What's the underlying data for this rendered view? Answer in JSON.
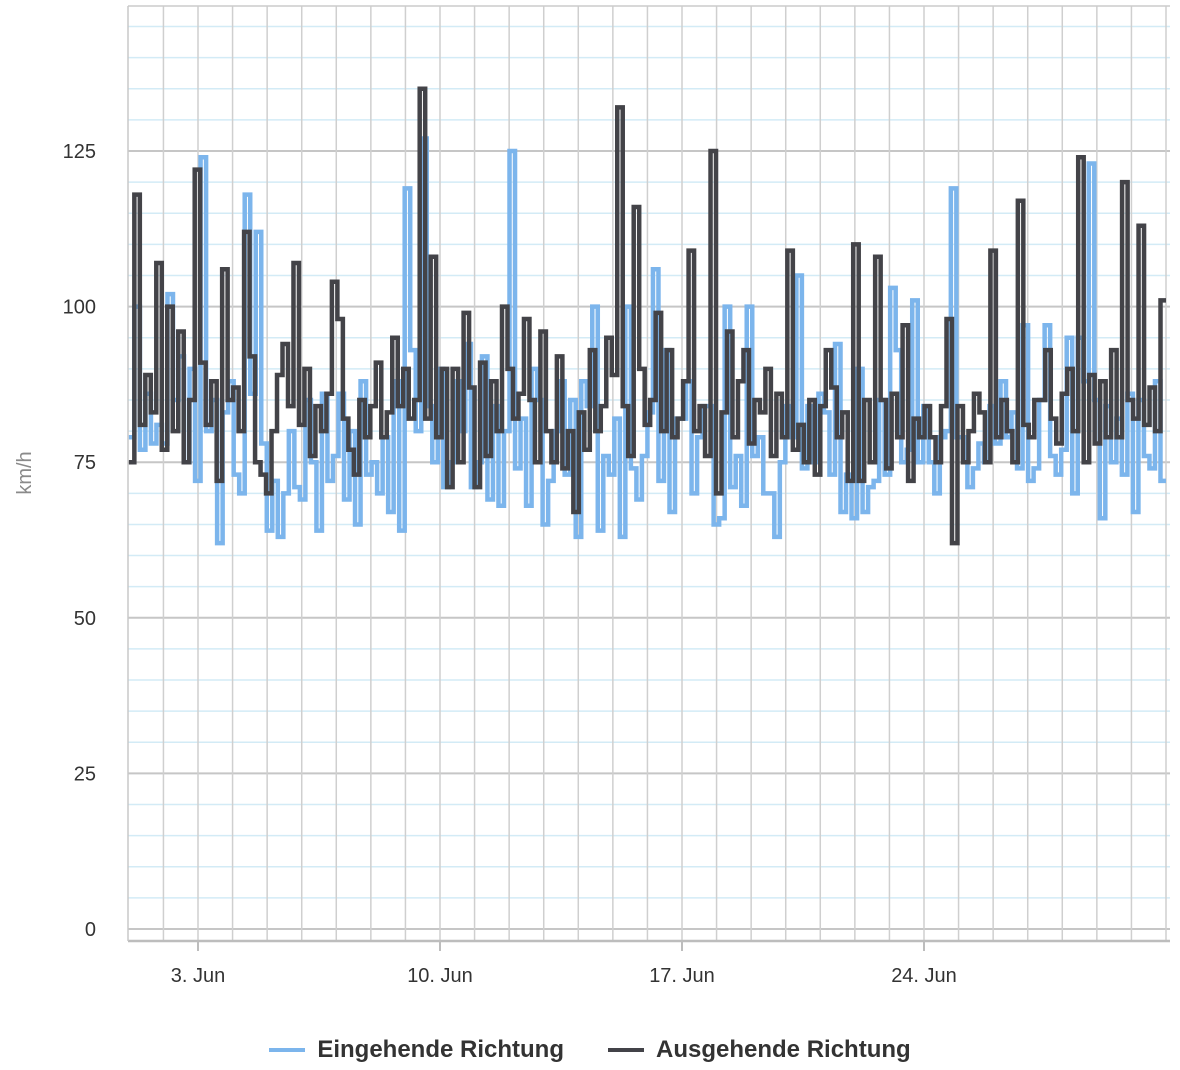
{
  "chart_data": {
    "type": "line",
    "ylabel": "km/h",
    "xlabel": "",
    "ylim": [
      0,
      150
    ],
    "y_ticks": [
      "0",
      "25",
      "50",
      "75",
      "100",
      "125"
    ],
    "x_range": [
      "2024-06-01",
      "2024-06-30"
    ],
    "x_ticks": [
      "3. Jun",
      "10. Jun",
      "17. Jun",
      "24. Jun"
    ],
    "x_tick_dates": [
      "2024-06-03",
      "2024-06-10",
      "2024-06-17",
      "2024-06-24"
    ],
    "grid": true,
    "legend_position": "bottom",
    "series": [
      {
        "name": "Eingehende Richtung",
        "color": "#7cb5ec",
        "values": [
          [
            79,
            100,
            77,
            86,
            78,
            81,
            78,
            102,
            85,
            92,
            75,
            90,
            72,
            124,
            80,
            85,
            62,
            83,
            88,
            73,
            70,
            118,
            86,
            112,
            78,
            64,
            72,
            63,
            70,
            80,
            71,
            69,
            85,
            75,
            64,
            86,
            72,
            76,
            86,
            69
          ],
          [
            80,
            65,
            88,
            73,
            75,
            70,
            79,
            67,
            88,
            64,
            119,
            93,
            80,
            127,
            84,
            75,
            90,
            71,
            75,
            88,
            80,
            94,
            71,
            75,
            92,
            69,
            84,
            68,
            80,
            125,
            74,
            82,
            68,
            90,
            85,
            65,
            72,
            80,
            88,
            73
          ],
          [
            85,
            63,
            88,
            84,
            100,
            64,
            76,
            73,
            82,
            63,
            100,
            74,
            69,
            76,
            83,
            106,
            72,
            93,
            67,
            82,
            82,
            88,
            70,
            79,
            84,
            84,
            65,
            66,
            100,
            71,
            76,
            68,
            100,
            76,
            79,
            70,
            70,
            63,
            75,
            84
          ],
          [
            79,
            105,
            74,
            84,
            75,
            86,
            83,
            73,
            94,
            67,
            73,
            66,
            90,
            67,
            71,
            72,
            85,
            73,
            103,
            93,
            75,
            77,
            101,
            75,
            84,
            75,
            70,
            79,
            80,
            119,
            79,
            79,
            71,
            74,
            78,
            75,
            84,
            78,
            88,
            79
          ],
          [
            83,
            74,
            97,
            72,
            74,
            85,
            97,
            76,
            73,
            77,
            95,
            70,
            95,
            88,
            123,
            85,
            66,
            84,
            75,
            82,
            73,
            86,
            67,
            85,
            76,
            74,
            88,
            72
          ]
        ]
      },
      {
        "name": "Ausgehende Richtung",
        "color": "#434348",
        "values": [
          [
            75,
            118,
            81,
            89,
            83,
            107,
            77,
            100,
            80,
            96,
            75,
            85,
            122,
            91,
            81,
            88,
            72,
            106,
            85,
            87,
            80,
            112,
            92,
            75,
            73,
            70,
            80,
            89,
            94,
            84,
            107,
            81,
            90,
            76,
            84,
            80,
            86,
            104,
            98,
            82
          ],
          [
            77,
            73,
            85,
            79,
            84,
            91,
            79,
            83,
            95,
            84,
            90,
            82,
            85,
            135,
            82,
            108,
            79,
            90,
            71,
            90,
            75,
            99,
            87,
            71,
            91,
            76,
            88,
            80,
            100,
            90,
            82,
            86,
            98,
            85,
            75,
            96,
            80,
            75,
            92,
            74
          ],
          [
            80,
            67,
            83,
            77,
            93,
            80,
            84,
            95,
            89,
            132,
            84,
            76,
            116,
            90,
            81,
            85,
            99,
            80,
            93,
            79,
            82,
            88,
            109,
            80,
            84,
            76,
            125,
            70,
            83,
            96,
            79,
            88,
            93,
            78,
            85,
            83,
            90,
            76,
            86,
            79
          ],
          [
            109,
            77,
            81,
            75,
            85,
            73,
            84,
            93,
            87,
            79,
            83,
            72,
            110,
            72,
            85,
            75,
            108,
            85,
            74,
            86,
            79,
            97,
            72,
            82,
            79,
            84,
            79,
            75,
            84,
            98,
            62,
            84,
            75,
            80,
            86,
            83,
            75,
            109,
            79,
            85
          ],
          [
            80,
            75,
            117,
            81,
            79,
            85,
            85,
            93,
            82,
            78,
            86,
            90,
            80,
            124,
            75,
            89,
            78,
            88,
            79,
            93,
            79,
            120,
            85,
            82,
            113,
            81,
            87,
            80,
            101
          ]
        ]
      }
    ]
  }
}
